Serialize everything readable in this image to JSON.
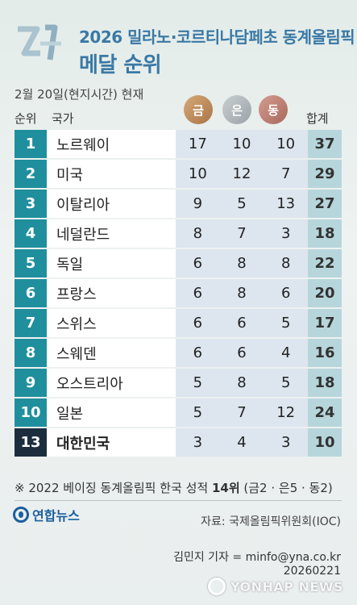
{
  "header": {
    "title_line1": "2026 밀라노·코르티나담페초 동계올림픽",
    "title_line2": "메달 순위",
    "as_of": "2월 20일(현지시간) 현재"
  },
  "columns": {
    "rank": "순위",
    "country": "국가",
    "gold": "금",
    "silver": "은",
    "bronze": "동",
    "total": "합계"
  },
  "colors": {
    "rank_bg": "#1f8f9d",
    "korea_rank_bg": "#1c2e3e",
    "title": "#3a78a5",
    "gold": "#c28f5f",
    "silver": "#b3babd",
    "bronze": "#c18478"
  },
  "chart_data": {
    "type": "table",
    "columns": [
      "순위",
      "국가",
      "금",
      "은",
      "동",
      "합계"
    ],
    "rows": [
      {
        "rank": "1",
        "country": "노르웨이",
        "gold": "17",
        "silver": "10",
        "bronze": "10",
        "total": "37"
      },
      {
        "rank": "2",
        "country": "미국",
        "gold": "10",
        "silver": "12",
        "bronze": "7",
        "total": "29"
      },
      {
        "rank": "3",
        "country": "이탈리아",
        "gold": "9",
        "silver": "5",
        "bronze": "13",
        "total": "27"
      },
      {
        "rank": "4",
        "country": "네덜란드",
        "gold": "8",
        "silver": "7",
        "bronze": "3",
        "total": "18"
      },
      {
        "rank": "5",
        "country": "독일",
        "gold": "6",
        "silver": "8",
        "bronze": "8",
        "total": "22"
      },
      {
        "rank": "6",
        "country": "프랑스",
        "gold": "6",
        "silver": "8",
        "bronze": "6",
        "total": "20"
      },
      {
        "rank": "7",
        "country": "스위스",
        "gold": "6",
        "silver": "6",
        "bronze": "5",
        "total": "17"
      },
      {
        "rank": "8",
        "country": "스웨덴",
        "gold": "6",
        "silver": "6",
        "bronze": "4",
        "total": "16"
      },
      {
        "rank": "9",
        "country": "오스트리아",
        "gold": "5",
        "silver": "8",
        "bronze": "5",
        "total": "18"
      },
      {
        "rank": "10",
        "country": "일본",
        "gold": "5",
        "silver": "7",
        "bronze": "12",
        "total": "24"
      },
      {
        "rank": "13",
        "country": "대한민국",
        "gold": "3",
        "silver": "4",
        "bronze": "3",
        "total": "10",
        "highlight": true
      }
    ]
  },
  "note": {
    "prefix": "※ 2022 베이징 동계올림픽 한국 성적 ",
    "rank": "14위",
    "suffix": " (금2 · 은5 · 동2)"
  },
  "footer": {
    "brand": "연합뉴스",
    "source": "자료: 국제올림픽위원회(IOC)",
    "reporter": "김민지 기자 = minfo@yna.co.kr",
    "date": "20260221",
    "watermark": "YONHAP NEWS"
  }
}
